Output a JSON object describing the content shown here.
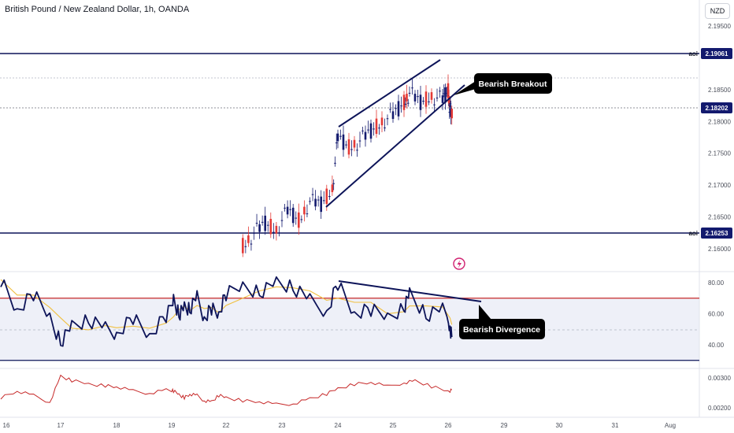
{
  "header": {
    "title": "British Pound / New Zealand Dollar, 1h, OANDA",
    "currency_label": "NZD"
  },
  "colors": {
    "up": "#131a6e",
    "down": "#e53935",
    "navy": "#0d1459",
    "rsi_bound": "#c62828",
    "rsi_ma": "#f0c040",
    "osc": "#c62828",
    "tag_bg": "#131a6e",
    "callout_bg": "#000000"
  },
  "chart_data": [
    {
      "type": "candlestick",
      "name": "price",
      "price_ticks": [
        "2.19500",
        "2.18500",
        "2.18000",
        "2.17500",
        "2.17000",
        "2.16500",
        "2.16000"
      ],
      "x_ticks": [
        "16",
        "17",
        "18",
        "19",
        "22",
        "23",
        "24",
        "25",
        "26",
        "29",
        "30",
        "31",
        "Aug"
      ],
      "ylim": [
        2.1565,
        2.1985
      ],
      "levels": [
        {
          "label": "aoi",
          "value": "2.19061"
        },
        {
          "label": "aoi",
          "value": "2.16253"
        }
      ],
      "current_price": "2.18202",
      "callout": "Bearish Breakout",
      "ohlc_sequence": [
        [
          22.3,
          2.158,
          2.161,
          2.1575,
          2.1605
        ],
        [
          22.5,
          2.1605,
          2.163,
          2.1595,
          2.1625
        ],
        [
          22.7,
          2.1625,
          2.165,
          2.1615,
          2.164
        ],
        [
          22.9,
          2.164,
          2.166,
          2.1625,
          2.163
        ],
        [
          23.1,
          2.163,
          2.1665,
          2.162,
          2.166
        ],
        [
          23.3,
          2.166,
          2.167,
          2.1635,
          2.1645
        ],
        [
          23.5,
          2.1645,
          2.168,
          2.164,
          2.1675
        ],
        [
          23.7,
          2.1675,
          2.169,
          2.166,
          2.167
        ],
        [
          23.9,
          2.167,
          2.17,
          2.1665,
          2.1695
        ],
        [
          24.0,
          2.1695,
          2.179,
          2.169,
          2.1775
        ],
        [
          24.2,
          2.1775,
          2.1785,
          2.1745,
          2.176
        ],
        [
          24.4,
          2.176,
          2.178,
          2.173,
          2.177
        ],
        [
          24.6,
          2.177,
          2.179,
          2.1755,
          2.1785
        ],
        [
          24.8,
          2.1785,
          2.1805,
          2.177,
          2.18
        ],
        [
          25.0,
          2.18,
          2.1815,
          2.179,
          2.181
        ],
        [
          25.2,
          2.181,
          2.1835,
          2.18,
          2.183
        ],
        [
          25.3,
          2.183,
          2.1865,
          2.1815,
          2.1845
        ],
        [
          25.5,
          2.1845,
          2.185,
          2.182,
          2.183
        ],
        [
          25.7,
          2.183,
          2.1845,
          2.1815,
          2.184
        ],
        [
          25.9,
          2.184,
          2.185,
          2.1825,
          2.1835
        ],
        [
          26.0,
          2.1835,
          2.1858,
          2.183,
          2.1848
        ],
        [
          26.1,
          2.1848,
          2.185,
          2.181,
          2.182
        ],
        [
          26.2,
          2.182,
          2.1825,
          2.1795,
          2.1805
        ]
      ]
    },
    {
      "type": "line",
      "name": "rsi",
      "y_ticks": [
        "80.00",
        "60.00",
        "40.00"
      ],
      "ylim": [
        25,
        88
      ],
      "upper": 70,
      "lower": 30,
      "callout": "Bearish Divergence",
      "x": [
        15.9,
        16.2,
        16.5,
        16.8,
        17.0,
        17.2,
        17.5,
        17.8,
        18.0,
        18.3,
        18.6,
        18.9,
        19.1,
        19.4,
        19.7,
        20.0,
        20.4,
        20.8,
        21.2,
        21.6,
        22.0,
        22.3,
        22.6,
        22.9,
        23.2,
        23.5,
        23.8,
        24.0,
        24.3,
        24.6,
        24.9,
        25.2,
        25.3,
        25.6,
        25.9,
        26.1,
        26.2
      ],
      "values": [
        82,
        62,
        72,
        58,
        42,
        52,
        55,
        50,
        48,
        58,
        46,
        58,
        70,
        60,
        64,
        62,
        70,
        58,
        64,
        60,
        72,
        78,
        74,
        80,
        76,
        68,
        62,
        80,
        60,
        62,
        58,
        64,
        73,
        58,
        62,
        52,
        45
      ]
    },
    {
      "type": "line",
      "name": "oscillator",
      "y_ticks": [
        "0.00300",
        "0.00200"
      ],
      "ylim": [
        0.0019,
        0.0032
      ],
      "x": [
        15.9,
        16.2,
        16.5,
        16.8,
        17.0,
        17.2,
        17.5,
        17.8,
        18.0,
        18.3,
        18.6,
        18.9,
        19.1,
        19.4,
        19.7,
        20.0,
        20.4,
        20.8,
        21.2,
        21.6,
        22.0,
        22.3,
        22.6,
        22.9,
        23.2,
        23.5,
        23.8,
        24.0,
        24.3,
        24.6,
        24.9,
        25.2,
        25.4,
        25.7,
        26.0,
        26.2
      ],
      "values": [
        0.00235,
        0.00255,
        0.0024,
        0.0022,
        0.00305,
        0.0029,
        0.0028,
        0.00275,
        0.0027,
        0.00255,
        0.0025,
        0.0026,
        0.00255,
        0.00245,
        0.00235,
        0.00245,
        0.0024,
        0.00225,
        0.0022,
        0.0024,
        0.00235,
        0.00225,
        0.0022,
        0.0021,
        0.00215,
        0.0023,
        0.00245,
        0.00265,
        0.0028,
        0.00285,
        0.0027,
        0.00285,
        0.0029,
        0.0027,
        0.00255,
        0.0026
      ]
    }
  ]
}
